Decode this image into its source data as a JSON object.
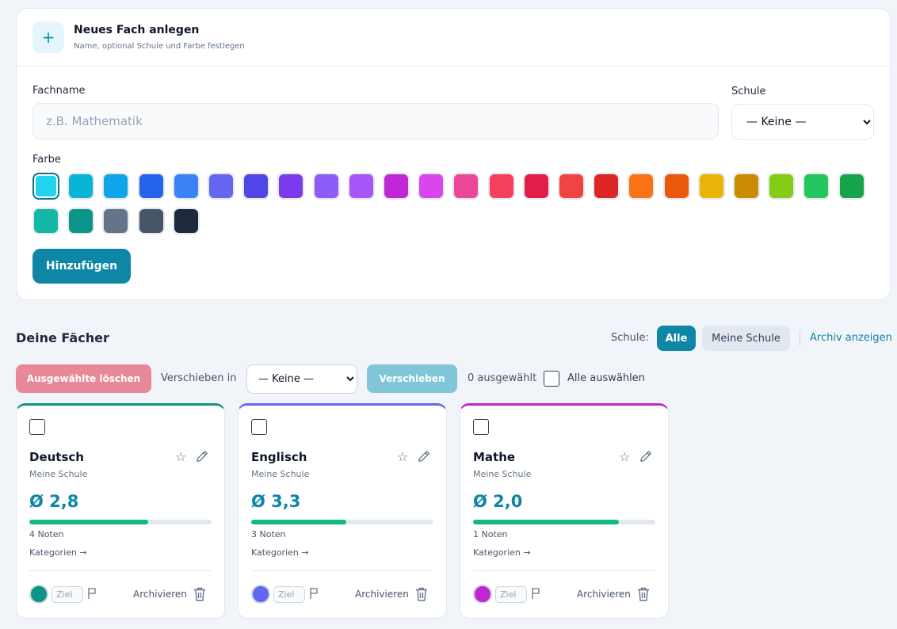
{
  "new_subject": {
    "title": "Neues Fach anlegen",
    "subtitle": "Name, optional Schule und Farbe festlegen",
    "icon": "plus-icon",
    "name_label": "Fachname",
    "name_placeholder": "z.B. Mathematik",
    "school_label": "Schule",
    "school_value": "— Keine —",
    "color_label": "Farbe",
    "colors": [
      "#22d3ee",
      "#06b6d4",
      "#0ea5e9",
      "#2563eb",
      "#3b82f6",
      "#6366f1",
      "#4f46e5",
      "#7c3aed",
      "#8b5cf6",
      "#a855f7",
      "#c026d3",
      "#d946ef",
      "#ec4899",
      "#f43f5e",
      "#e11d48",
      "#ef4444",
      "#dc2626",
      "#f97316",
      "#ea580c",
      "#eab308",
      "#ca8a04",
      "#84cc16",
      "#22c55e",
      "#16a34a",
      "#14b8a6",
      "#0d9488",
      "#64748b",
      "#475569",
      "#1e293b"
    ],
    "selected_color": "#22d3ee",
    "add_button": "Hinzufügen"
  },
  "subjects": {
    "title": "Deine Fächer",
    "filter_label": "Schule:",
    "filter_all": "Alle",
    "filter_mine": "Meine Schule",
    "archive_link": "Archiv anzeigen"
  },
  "toolbar": {
    "delete_button": "Ausgewählte löschen",
    "move_label": "Verschieben in",
    "move_value": "— Keine —",
    "move_button": "Verschieben",
    "selected_count": "0 ausgewählt",
    "select_all": "Alle auswählen"
  },
  "cards": [
    {
      "name": "Deutsch",
      "school": "Meine Schule",
      "average": "Ø 2,8",
      "progress": 0.65,
      "count": "4 Noten",
      "categories": "Kategorien →",
      "color": "#0d9488",
      "goal_placeholder": "Ziel",
      "archive": "Archivieren"
    },
    {
      "name": "Englisch",
      "school": "Meine Schule",
      "average": "Ø 3,3",
      "progress": 0.52,
      "count": "3 Noten",
      "categories": "Kategorien →",
      "color": "#6366f1",
      "goal_placeholder": "Ziel",
      "archive": "Archivieren"
    },
    {
      "name": "Mathe",
      "school": "Meine Schule",
      "average": "Ø 2,0",
      "progress": 0.8,
      "count": "1 Noten",
      "categories": "Kategorien →",
      "color": "#c026d3",
      "goal_placeholder": "Ziel",
      "archive": "Archivieren"
    }
  ],
  "accent_color": "#0e86a5"
}
